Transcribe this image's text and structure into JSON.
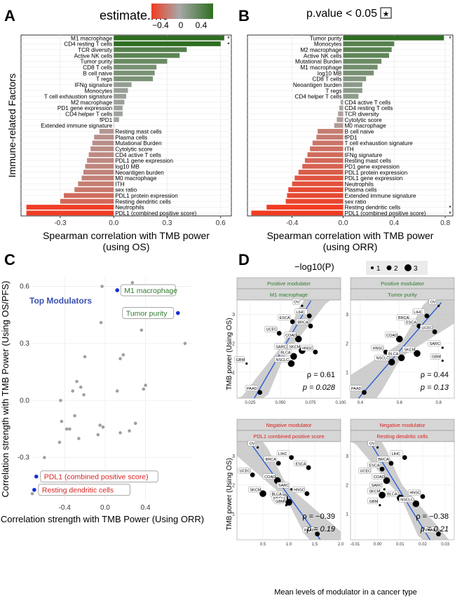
{
  "panels": {
    "A": {
      "letter": "A"
    },
    "B": {
      "letter": "B"
    },
    "C": {
      "letter": "C"
    },
    "D": {
      "letter": "D"
    }
  },
  "legend_rho": {
    "title": "estimate.rho",
    "ticks": [
      "−0.4",
      "0",
      "0.4"
    ],
    "low_color": "#f03c22",
    "mid_color": "#a8a8a8",
    "high_color": "#2f6e22"
  },
  "legend_p": {
    "label": "p.value < 0.05",
    "symbol": "★"
  },
  "legend_logp": {
    "title": "−log10(P)",
    "sizes": [
      "1",
      "2",
      "3"
    ]
  },
  "chart_data": [
    {
      "id": "A",
      "type": "bar",
      "orientation": "horizontal",
      "ylabel": "Immune-related Factors",
      "xlabel": "Spearman correlation with TMB power",
      "xlabel2": "(using OS)",
      "xlim": [
        -0.52,
        0.66
      ],
      "xticks": [
        "-0.3",
        "0.0",
        "0.3",
        "0.6"
      ],
      "xtick_values": [
        -0.3,
        0.0,
        0.3,
        0.6
      ],
      "categories": [
        "M1 macrophage",
        "CD4 resting T cells",
        "TCR diversity",
        "Active NK cells",
        "Tumor purity",
        "CD8 T cells",
        "B cell naive",
        "T regs",
        "IFNg signature",
        "Monocytes",
        "T cell exhaustion signature",
        "M2 macrophage",
        "PD1 gene expression",
        "CD4 helper T cells",
        "fPD1",
        "Extended immune signature",
        "Resting mast cells",
        "Plasma cells",
        "Mutational Burden",
        "Cytolytic score",
        "CD4 active T cells",
        "PDL1 gene expression",
        "log10 MB",
        "Neoantigen burden",
        "M0 macrophage",
        "ITH",
        "sex ratio",
        "PDL1 protein expression",
        "Resting dendritic cells",
        "Neutrophils",
        "PDL1 (combined positive score)"
      ],
      "values": [
        0.62,
        0.6,
        0.41,
        0.37,
        0.3,
        0.24,
        0.23,
        0.22,
        0.1,
        0.08,
        0.07,
        0.06,
        0.05,
        0.05,
        0.03,
        0.0,
        -0.08,
        -0.11,
        -0.12,
        -0.13,
        -0.14,
        -0.15,
        -0.16,
        -0.17,
        -0.18,
        -0.2,
        -0.22,
        -0.28,
        -0.3,
        -0.49,
        -0.49
      ],
      "significant": [
        "M1 macrophage",
        "CD4 resting T cells"
      ],
      "star": "*"
    },
    {
      "id": "B",
      "type": "bar",
      "orientation": "horizontal",
      "xlabel": "Spearman correlation with TMB power",
      "xlabel2": "(using ORR)",
      "xlim": [
        -0.75,
        0.86
      ],
      "xticks": [
        "-0.4",
        "0.0",
        "0.4",
        "0.8"
      ],
      "xtick_values": [
        -0.4,
        0.0,
        0.4,
        0.8
      ],
      "categories": [
        "Tumor purity",
        "Monocytes",
        "M2 macrophage",
        "Active NK cells",
        "Mutational Burden",
        "M1 macrophage",
        "log10 MB",
        "CD8 T cells",
        "Neoantigen burden",
        "T regs",
        "CD4 helper T cells",
        "CD4 active T cells",
        "CD4 resting T cells",
        "TCR diversity",
        "Cytolytic score",
        "M0 macrophage",
        "B cell naive",
        "fPD1",
        "T cell exhaustion signature",
        "ITH",
        "IFNg signature",
        "Resting mast cells",
        "PD1 gene expression",
        "PDL1 protein expression",
        "PDL1 gene expression",
        "Neutrophils",
        "Plasma cells",
        "Extended immune signature",
        "sex ratio",
        "Resting dendritic cells",
        "PDL1 (combined positive score)"
      ],
      "values": [
        0.79,
        0.4,
        0.38,
        0.36,
        0.3,
        0.27,
        0.24,
        0.18,
        0.15,
        0.15,
        0.12,
        -0.02,
        -0.03,
        -0.04,
        -0.05,
        -0.07,
        -0.2,
        -0.21,
        -0.24,
        -0.26,
        -0.28,
        -0.3,
        -0.32,
        -0.35,
        -0.38,
        -0.4,
        -0.43,
        -0.44,
        -0.45,
        -0.6,
        -0.72
      ],
      "significant": [
        "Tumor purity",
        "Resting dendritic cells",
        "PDL1 (combined positive score)"
      ],
      "star": "*"
    },
    {
      "id": "C",
      "type": "scatter",
      "title": "Top Modulators",
      "xlabel": "Correlation strength with TMB Power (Using ORR)",
      "ylabel": "Correlation strength with TMB Power (Using OS/PFS)",
      "xlim": [
        -0.72,
        0.86
      ],
      "ylim": [
        -0.53,
        0.65
      ],
      "xticks": [
        "-0.4",
        "0.0",
        "0.4"
      ],
      "xtick_values": [
        -0.4,
        0.0,
        0.4
      ],
      "yticks": [
        "-0.3",
        "0.0",
        "0.3",
        "0.6"
      ],
      "ytick_values": [
        -0.3,
        0.0,
        0.3,
        0.6
      ],
      "points": [
        [
          0.79,
          0.3
        ],
        [
          0.4,
          0.08
        ],
        [
          0.38,
          0.06
        ],
        [
          0.36,
          0.37
        ],
        [
          0.3,
          -0.12
        ],
        [
          0.27,
          0.62
        ],
        [
          0.24,
          -0.16
        ],
        [
          0.18,
          0.24
        ],
        [
          0.15,
          -0.17
        ],
        [
          0.15,
          0.22
        ],
        [
          0.12,
          0.05
        ],
        [
          -0.02,
          -0.14
        ],
        [
          -0.03,
          0.6
        ],
        [
          -0.04,
          0.41
        ],
        [
          -0.05,
          -0.13
        ],
        [
          -0.07,
          -0.18
        ],
        [
          -0.2,
          0.23
        ],
        [
          -0.21,
          0.03
        ],
        [
          -0.24,
          0.07
        ],
        [
          -0.26,
          -0.2
        ],
        [
          -0.28,
          0.1
        ],
        [
          -0.3,
          -0.08
        ],
        [
          -0.32,
          0.05
        ],
        [
          -0.35,
          -0.15
        ],
        [
          -0.38,
          -0.15
        ],
        [
          -0.4,
          -0.49
        ],
        [
          -0.43,
          -0.11
        ],
        [
          -0.44,
          0.0
        ],
        [
          -0.45,
          -0.22
        ],
        [
          -0.6,
          -0.3
        ],
        [
          -0.72,
          -0.49
        ]
      ],
      "highlighted": [
        {
          "label": "M1 macrophage",
          "x": 0.12,
          "y": 0.58,
          "color": "#2f7a2f"
        },
        {
          "label": "Tumor purity",
          "x": 0.72,
          "y": 0.46,
          "color": "#2f7a2f"
        },
        {
          "label": "PDL1 (combined positive score)",
          "x": -0.68,
          "y": -0.4,
          "color": "#d92020"
        },
        {
          "label": "Resting dendritic cells",
          "x": -0.7,
          "y": -0.47,
          "color": "#d92020"
        }
      ]
    },
    {
      "id": "D",
      "type": "scatter",
      "xlabel": "Mean levels of modulator in a cancer type",
      "ylabel": "TMB power (Using OS)",
      "facets": [
        {
          "group": "Positive modulator",
          "group_color": "#2f7a2f",
          "modulator": "M1 macrophage",
          "xlim": [
            0.014,
            0.1
          ],
          "ylim": [
            0.1,
            3.5
          ],
          "xticks": [
            "0.025",
            "0.050",
            "0.075",
            "0.100"
          ],
          "xtick_values": [
            0.025,
            0.05,
            0.075,
            0.1
          ],
          "yticks": [
            "1",
            "2",
            "3"
          ],
          "ytick_values": [
            1,
            2,
            3
          ],
          "rho": "ρ = 0.61",
          "p": "p = 0.028",
          "points": [
            {
              "label": "OV",
              "x": 0.068,
              "y": 3.3,
              "s": 1
            },
            {
              "label": "LIHC",
              "x": 0.074,
              "y": 2.95,
              "s": 2
            },
            {
              "label": "BRCA",
              "x": 0.075,
              "y": 2.6,
              "s": 2
            },
            {
              "label": "ESCA",
              "x": 0.06,
              "y": 2.75,
              "s": 2
            },
            {
              "label": "UCEC",
              "x": 0.049,
              "y": 2.35,
              "s": 2
            },
            {
              "label": "COAD",
              "x": 0.065,
              "y": 2.15,
              "s": 3
            },
            {
              "label": "SARC",
              "x": 0.057,
              "y": 1.75,
              "s": 1
            },
            {
              "label": "SKCM",
              "x": 0.068,
              "y": 1.75,
              "s": 3
            },
            {
              "label": "BLCA",
              "x": 0.061,
              "y": 1.55,
              "s": 3
            },
            {
              "label": "HNSC",
              "x": 0.079,
              "y": 1.7,
              "s": 2
            },
            {
              "label": "GBM",
              "x": 0.022,
              "y": 1.3,
              "s": 1
            },
            {
              "label": "NSCLC",
              "x": 0.059,
              "y": 1.3,
              "s": 3
            },
            {
              "label": "PAAD",
              "x": 0.033,
              "y": 0.3,
              "s": 2
            }
          ],
          "fit": [
            [
              0.033,
              0.25
            ],
            [
              0.073,
              3.3
            ]
          ]
        },
        {
          "group": "Positive modulator",
          "group_color": "#2f7a2f",
          "modulator": "Tumor purity",
          "xlim": [
            0.35,
            0.88
          ],
          "ylim": [
            0.1,
            3.5
          ],
          "xticks": [
            "0.4",
            "0.6",
            "0.8"
          ],
          "xtick_values": [
            0.4,
            0.6,
            0.8
          ],
          "yticks": [
            "1",
            "2",
            "3"
          ],
          "ytick_values": [
            1,
            2,
            3
          ],
          "rho": "ρ = 0.44",
          "p": "p = 0.13",
          "points": [
            {
              "label": "OV",
              "x": 0.8,
              "y": 3.3,
              "s": 1
            },
            {
              "label": "LIHC",
              "x": 0.74,
              "y": 2.95,
              "s": 2
            },
            {
              "label": "BRCA",
              "x": 0.66,
              "y": 2.75,
              "s": 2
            },
            {
              "label": "ESCA",
              "x": 0.7,
              "y": 2.6,
              "s": 2
            },
            {
              "label": "UCEC",
              "x": 0.78,
              "y": 2.4,
              "s": 2
            },
            {
              "label": "COAD",
              "x": 0.6,
              "y": 2.15,
              "s": 3
            },
            {
              "label": "SARC",
              "x": 0.82,
              "y": 1.85,
              "s": 1
            },
            {
              "label": "HNSC",
              "x": 0.53,
              "y": 1.7,
              "s": 2
            },
            {
              "label": "SKCM",
              "x": 0.69,
              "y": 1.65,
              "s": 3
            },
            {
              "label": "GBM",
              "x": 0.82,
              "y": 1.4,
              "s": 1
            },
            {
              "label": "NSCLC",
              "x": 0.56,
              "y": 1.35,
              "s": 3
            },
            {
              "label": "BLCA",
              "x": 0.61,
              "y": 1.5,
              "s": 3
            },
            {
              "label": "PAAD",
              "x": 0.42,
              "y": 0.3,
              "s": 2
            }
          ],
          "fit": [
            [
              0.42,
              0.25
            ],
            [
              0.8,
              3.3
            ]
          ]
        },
        {
          "group": "Negative modulator",
          "group_color": "#d92020",
          "modulator": "PDL1 combined positive score",
          "xlim": [
            0.0,
            2.0
          ],
          "ylim": [
            0.1,
            3.5
          ],
          "xticks": [
            "0.5",
            "1.0",
            "1.5",
            "2.0"
          ],
          "xtick_values": [
            0.5,
            1.0,
            1.5,
            2.0
          ],
          "yticks": [
            "1",
            "2",
            "3"
          ],
          "ytick_values": [
            1,
            2,
            3
          ],
          "rho": "ρ = −0.39",
          "p": "p = 0.19",
          "points": [
            {
              "label": "OV",
              "x": 0.4,
              "y": 3.3,
              "s": 1
            },
            {
              "label": "LIHC",
              "x": 1.05,
              "y": 2.95,
              "s": 2
            },
            {
              "label": "BRCA",
              "x": 0.8,
              "y": 2.75,
              "s": 2
            },
            {
              "label": "ESCA",
              "x": 1.38,
              "y": 2.6,
              "s": 2
            },
            {
              "label": "UCEC",
              "x": 0.3,
              "y": 2.35,
              "s": 2
            },
            {
              "label": "COAD",
              "x": 0.78,
              "y": 2.15,
              "s": 3
            },
            {
              "label": "SARC",
              "x": 1.05,
              "y": 1.85,
              "s": 1
            },
            {
              "label": "SKCM",
              "x": 0.5,
              "y": 1.7,
              "s": 3
            },
            {
              "label": "HNSC",
              "x": 1.35,
              "y": 1.7,
              "s": 2
            },
            {
              "label": "BLCA",
              "x": 0.92,
              "y": 1.55,
              "s": 3
            },
            {
              "label": "NSCLC",
              "x": 1.0,
              "y": 1.4,
              "s": 3
            },
            {
              "label": "GBM",
              "x": 0.95,
              "y": 1.3,
              "s": 1
            },
            {
              "label": "PAAD",
              "x": 1.55,
              "y": 0.3,
              "s": 2
            }
          ],
          "fit": [
            [
              0.35,
              3.3
            ],
            [
              1.55,
              0.25
            ]
          ]
        },
        {
          "group": "Negative modulator",
          "group_color": "#d92020",
          "modulator": "Resting dendritic cells",
          "xlim": [
            -0.012,
            0.034
          ],
          "ylim": [
            0.1,
            3.5
          ],
          "xticks": [
            "-0.01",
            "0.00",
            "0.01",
            "0.02",
            "0.03"
          ],
          "xtick_values": [
            -0.01,
            0.0,
            0.01,
            0.02,
            0.03
          ],
          "yticks": [
            "1",
            "2",
            "3"
          ],
          "ytick_values": [
            1,
            2,
            3
          ],
          "rho": "ρ = −0.38",
          "p": "p = 0.21",
          "points": [
            {
              "label": "OV",
              "x": 0.0,
              "y": 3.3,
              "s": 1
            },
            {
              "label": "LIHC",
              "x": 0.012,
              "y": 2.95,
              "s": 2
            },
            {
              "label": "BRCA",
              "x": 0.006,
              "y": 2.75,
              "s": 2
            },
            {
              "label": "ESCA",
              "x": 0.002,
              "y": 2.55,
              "s": 2
            },
            {
              "label": "UCEC",
              "x": -0.002,
              "y": 2.35,
              "s": 1
            },
            {
              "label": "COAD",
              "x": 0.004,
              "y": 2.15,
              "s": 3
            },
            {
              "label": "SARC",
              "x": 0.003,
              "y": 1.85,
              "s": 1
            },
            {
              "label": "SKCM",
              "x": 0.002,
              "y": 1.65,
              "s": 3
            },
            {
              "label": "BLCA",
              "x": 0.01,
              "y": 1.55,
              "s": 3
            },
            {
              "label": "HNSC",
              "x": 0.02,
              "y": 1.6,
              "s": 2
            },
            {
              "label": "NSCLC",
              "x": 0.017,
              "y": 1.35,
              "s": 3
            },
            {
              "label": "GBM",
              "x": 0.001,
              "y": 1.3,
              "s": 1
            },
            {
              "label": "PAAD",
              "x": 0.027,
              "y": 0.3,
              "s": 2
            }
          ],
          "fit": [
            [
              -0.001,
              3.35
            ],
            [
              0.022,
              0.25
            ]
          ]
        }
      ]
    }
  ]
}
